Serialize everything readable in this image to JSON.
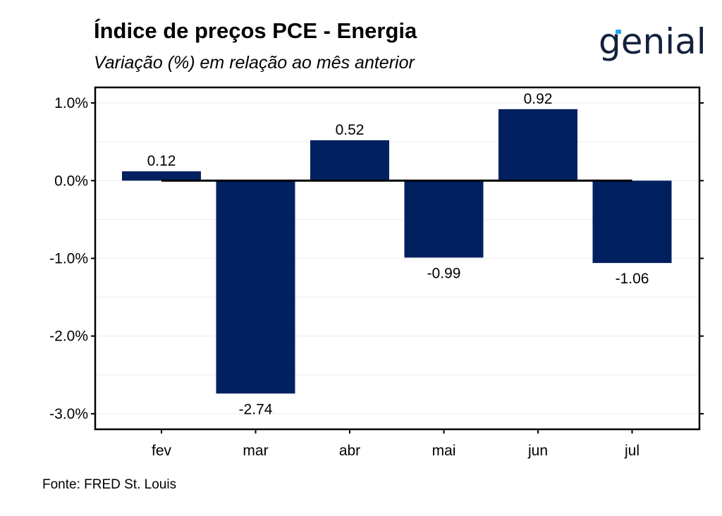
{
  "header": {
    "title": "Índice de preços PCE - Energia",
    "subtitle": "Variação (%) em relação ao mês anterior"
  },
  "logo": {
    "text": "genial",
    "accent_color": "#1fa5ee",
    "color": "#14213d"
  },
  "footer": {
    "source": "Fonte: FRED St. Louis"
  },
  "chart_data": {
    "type": "bar",
    "title": "Índice de preços PCE - Energia",
    "subtitle": "Variação (%) em relação ao mês anterior",
    "categories": [
      "fev",
      "mar",
      "abr",
      "mai",
      "jun",
      "jul"
    ],
    "values": [
      0.12,
      -2.74,
      0.52,
      -0.99,
      0.92,
      -1.06
    ],
    "data_labels": [
      "0.12",
      "-2.74",
      "0.52",
      "-0.99",
      "0.92",
      "-1.06"
    ],
    "ylim": [
      -3.2,
      1.2
    ],
    "yticks": [
      1.0,
      0.0,
      -1.0,
      -2.0,
      -3.0
    ],
    "ytick_labels": [
      "1.0%",
      "0.0%",
      "-1.0%",
      "-2.0%",
      "-3.0%"
    ],
    "xlabel": "",
    "ylabel": "",
    "bar_color": "#002060",
    "grid": true,
    "zero_line": true
  }
}
